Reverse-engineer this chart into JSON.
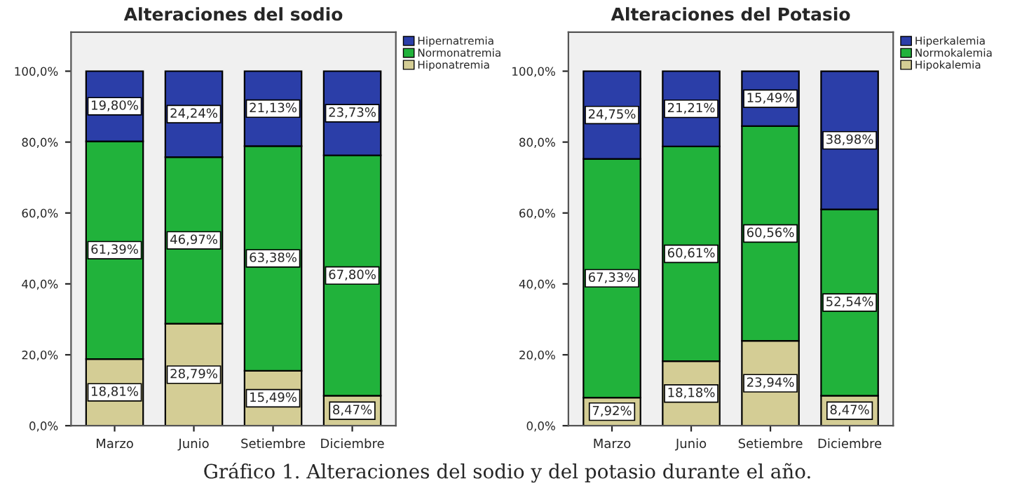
{
  "chart_data": [
    {
      "type": "bar",
      "title": "Alteraciones del sodio",
      "categories": [
        "Marzo",
        "Junio",
        "Setiembre",
        "Diciembre"
      ],
      "stacked": true,
      "ylim": [
        0,
        111
      ],
      "yticks": [
        {
          "value": 0,
          "label": "0,0%"
        },
        {
          "value": 20,
          "label": "20,0%"
        },
        {
          "value": 40,
          "label": "40,0%"
        },
        {
          "value": 60,
          "label": "60,0%"
        },
        {
          "value": 80,
          "label": "80,0%"
        },
        {
          "value": 100,
          "label": "100,0%"
        }
      ],
      "legend": "right",
      "grid": false,
      "series": [
        {
          "name": "Hiponatremia",
          "color": "#d4cd95",
          "values": [
            18.81,
            28.79,
            15.49,
            8.47
          ],
          "value_labels": [
            "18,81%",
            "28,79%",
            "15,49%",
            "8,47%"
          ]
        },
        {
          "name": "Normonatremia",
          "color": "#21b23b",
          "values": [
            61.39,
            46.97,
            63.38,
            67.8
          ],
          "value_labels": [
            "61,39%",
            "46,97%",
            "63,38%",
            "67,80%"
          ]
        },
        {
          "name": "Hipernatremia",
          "color": "#2b3ea8",
          "values": [
            19.8,
            24.24,
            21.13,
            23.73
          ],
          "value_labels": [
            "19,80%",
            "24,24%",
            "21,13%",
            "23,73%"
          ]
        }
      ]
    },
    {
      "type": "bar",
      "title": "Alteraciones del Potasio",
      "categories": [
        "Marzo",
        "Junio",
        "Setiembre",
        "Diciembre"
      ],
      "stacked": true,
      "ylim": [
        0,
        111
      ],
      "yticks": [
        {
          "value": 0,
          "label": "0,0%"
        },
        {
          "value": 20,
          "label": "20,0%"
        },
        {
          "value": 40,
          "label": "40,0%"
        },
        {
          "value": 60,
          "label": "60,0%"
        },
        {
          "value": 80,
          "label": "80,0%"
        },
        {
          "value": 100,
          "label": "100,0%"
        }
      ],
      "legend": "right",
      "grid": false,
      "annotations": [
        "Gráfico 1. Alteraciones del sodio y del potasio durante el año."
      ],
      "series": [
        {
          "name": "Hipokalemia",
          "color": "#d4cd95",
          "values": [
            7.92,
            18.18,
            23.94,
            8.47
          ],
          "value_labels": [
            "7,92%",
            "18,18%",
            "23,94%",
            "8,47%"
          ]
        },
        {
          "name": "Normokalemia",
          "color": "#21b23b",
          "values": [
            67.33,
            60.61,
            60.56,
            52.54
          ],
          "value_labels": [
            "67,33%",
            "60,61%",
            "60,56%",
            "52,54%"
          ]
        },
        {
          "name": "Hiperkalemia",
          "color": "#2b3ea8",
          "values": [
            24.75,
            21.21,
            15.49,
            38.98
          ],
          "value_labels": [
            "24,75%",
            "21,21%",
            "15,49%",
            "38,98%"
          ]
        }
      ]
    }
  ]
}
